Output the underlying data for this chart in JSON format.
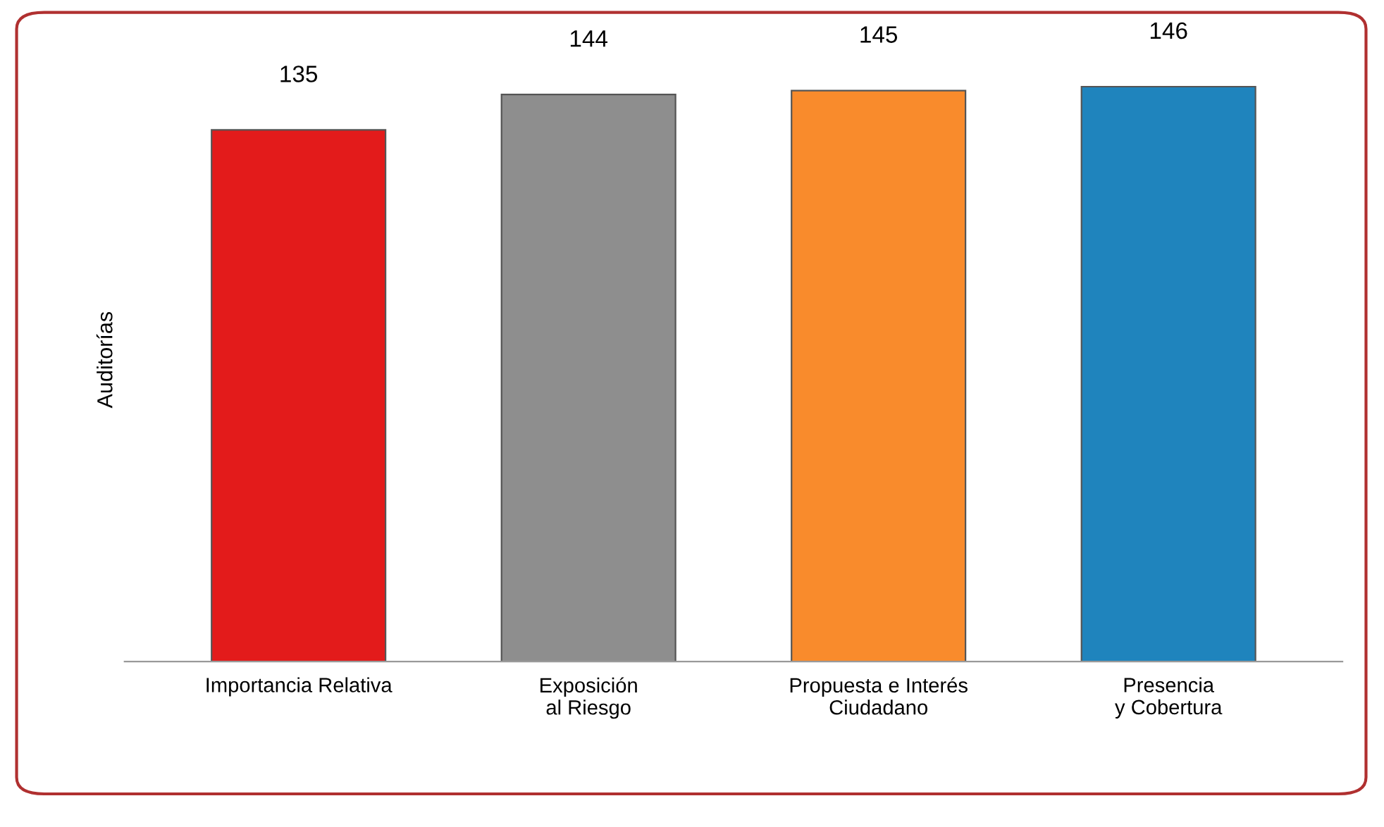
{
  "chart_data": {
    "type": "bar",
    "ylabel": "Auditorías",
    "categories": [
      "Importancia Relativa",
      "Exposición\nal Riesgo",
      "Propuesta e Interés\nCiudadano",
      "Presencia\ny Cobertura"
    ],
    "values": [
      135,
      144,
      145,
      146
    ],
    "colors": [
      "#e31b1b",
      "#8e8e8e",
      "#f98b2c",
      "#1f84bd"
    ],
    "tick_labels": "x",
    "data_labels": true,
    "grid": false
  }
}
